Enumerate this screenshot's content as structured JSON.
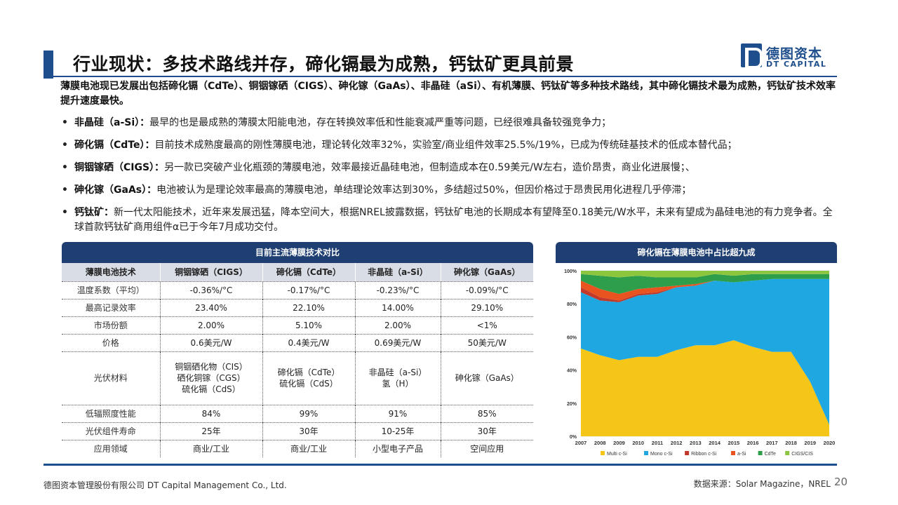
{
  "header": {
    "title": "行业现状：多技术路线并存，碲化镉最为成熟，钙钛矿更具前景",
    "logo_cn": "德图资本",
    "logo_en": "DT CAPITAL"
  },
  "intro": "薄膜电池现已发展出包括碲化镉（CdTe）、铜铟镓硒（CIGS）、砷化镓（GaAs）、非晶硅（aSi）、有机薄膜、钙钛矿等多种技术路线，其中碲化镉技术最为成熟，钙钛矿技术效率提升速度最快。",
  "bullets": [
    {
      "lead": "非晶硅（a-Si）：",
      "text": "最早的也是最成熟的薄膜太阳能电池，存在转换效率低和性能衰减严重等问题，已经很难具备较强竞争力；"
    },
    {
      "lead": "碲化镉（CdTe）：",
      "text": "目前技术成熟度最高的刚性薄膜电池，理论转化效率32%，实验室/商业组件效率25.5%/19%，已成为传统硅基技术的低成本替代品；"
    },
    {
      "lead": "铜铟镓硒（CIGS）：",
      "text": "另一款已突破产业化瓶颈的薄膜电池，效率最接近晶硅电池，但制造成本在0.59美元/W左右，造价昂贵，商业化进展慢；、"
    },
    {
      "lead": "砷化镓（GaAs）：",
      "text": "电池被认为是理论效率最高的薄膜电池，单结理论效率达到30%，多结超过50%，但因价格过于昂贵民用化进程几乎停滞；"
    },
    {
      "lead": "钙钛矿：",
      "text": "新一代太阳能技术，近年来发展迅猛，降本空间大，根据NREL披露数据，钙钛矿电池的长期成本有望降至0.18美元/W水平，未来有望成为晶硅电池的有力竞争者。全球首款钙钛矿商用组件α已于今年7月成功交付。"
    }
  ],
  "table": {
    "title": "目前主流薄膜技术对比",
    "headers": [
      "薄膜电池技术",
      "铜铟镓硒（CIGS）",
      "碲化镉（CdTe）",
      "非晶硅（a-Si）",
      "砷化镓（GaAs）"
    ],
    "rows": [
      [
        "温度系数（平均）",
        "-0.36%/°C",
        "-0.17%/°C",
        "-0.23%/°C",
        "-0.09%/°C"
      ],
      [
        "最高记录效率",
        "23.40%",
        "22.10%",
        "14.00%",
        "29.10%"
      ],
      [
        "市场份额",
        "2.00%",
        "5.10%",
        "2.00%",
        "<1%"
      ],
      [
        "价格",
        "0.6美元/W",
        "0.4美元/W",
        "0.69美元/W",
        "50美元/W"
      ],
      [
        "光伏材料",
        "铜铟硒化物（CIS）\n硒化铜镓（CGS）\n硫化镉（CdS）",
        "碲化镉（CdTe）\n硫化镉（CdS）",
        "非晶硅（a-Si）\n氢（H）",
        "砷化镓（GaAs）"
      ],
      [
        "低辐照度性能",
        "84%",
        "99%",
        "91%",
        "85%"
      ],
      [
        "光伏组件寿命",
        "25年",
        "30年",
        "10-25年",
        "30年"
      ],
      [
        "应用领域",
        "商业/工业",
        "商业/工业",
        "小型电子产品",
        "空间应用"
      ]
    ]
  },
  "chart_title": "碲化镉在薄膜电池中占比超九成",
  "chart_data": {
    "type": "area",
    "stacked": true,
    "x": [
      2007,
      2008,
      2009,
      2010,
      2011,
      2012,
      2013,
      2014,
      2015,
      2016,
      2017,
      2018,
      2019,
      2020
    ],
    "yticks": [
      "0%",
      "20%",
      "40%",
      "60%",
      "80%",
      "100%"
    ],
    "ylim": [
      0,
      100
    ],
    "legend_position": "bottom",
    "series": [
      {
        "name": "Multi c-Si",
        "color": "#f5c518",
        "values": [
          53,
          49,
          46,
          48,
          48,
          52,
          55,
          55,
          58,
          54,
          51,
          51,
          33,
          7
        ]
      },
      {
        "name": "Mono c-Si",
        "color": "#1ea7e1",
        "values": [
          34,
          33,
          35,
          37,
          38,
          38,
          36,
          39,
          35,
          40,
          44,
          44,
          62,
          88
        ]
      },
      {
        "name": "Ribbon c-Si",
        "color": "#c0392b",
        "values": [
          3,
          2,
          1,
          1,
          1,
          0,
          0,
          0,
          0,
          0,
          0,
          0,
          0,
          0
        ]
      },
      {
        "name": "a-Si",
        "color": "#e8531f",
        "values": [
          4,
          5,
          4,
          3,
          3,
          1,
          1,
          0,
          0,
          0,
          0,
          0,
          0,
          0
        ]
      },
      {
        "name": "CdTe",
        "color": "#2e9e4a",
        "values": [
          4,
          8,
          10,
          8,
          6,
          5,
          4,
          4,
          4,
          4,
          3,
          3,
          3,
          3
        ]
      },
      {
        "name": "CIGS/CIS",
        "color": "#8cc63f",
        "values": [
          2,
          3,
          4,
          3,
          4,
          4,
          4,
          2,
          3,
          2,
          2,
          2,
          2,
          2
        ]
      }
    ]
  },
  "footer": {
    "company": "德图资本管理股份有限公司 DT Capital Management Co., Ltd.",
    "source": "数据来源：Solar Magazine，NREL",
    "page": "20"
  }
}
